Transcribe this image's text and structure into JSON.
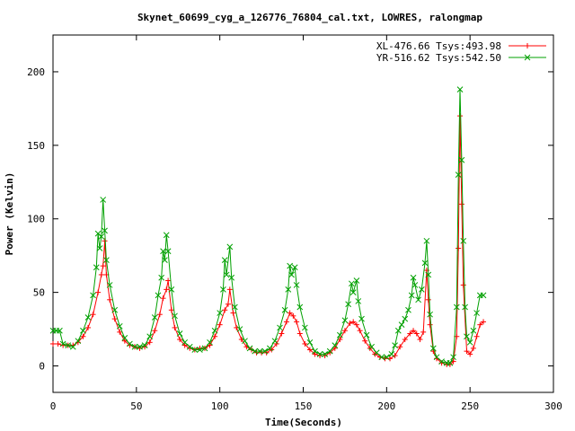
{
  "chart_data": {
    "type": "line",
    "title": "Skynet_60699_cyg_a_126776_76804_cal.txt, LOWRES, ralongmap",
    "xlabel": "Time(Seconds)",
    "ylabel": "Power (Kelvin)",
    "xlim": [
      0,
      300
    ],
    "ylim": [
      -18,
      225
    ],
    "xticks": [
      0,
      50,
      100,
      150,
      200,
      250,
      300
    ],
    "yticks": [
      0,
      50,
      100,
      150,
      200
    ],
    "grid": false,
    "legend_position": "top-right",
    "series": [
      {
        "name": "XL-476.66 Tsys:493.98",
        "color": "#ff0000",
        "marker": "plus",
        "points": [
          [
            0,
            15
          ],
          [
            3,
            15
          ],
          [
            6,
            14
          ],
          [
            9,
            14
          ],
          [
            12,
            14
          ],
          [
            15,
            16
          ],
          [
            18,
            20
          ],
          [
            21,
            26
          ],
          [
            24,
            35
          ],
          [
            27,
            50
          ],
          [
            29,
            62
          ],
          [
            30,
            68
          ],
          [
            31,
            85
          ],
          [
            32,
            62
          ],
          [
            34,
            45
          ],
          [
            37,
            32
          ],
          [
            40,
            23
          ],
          [
            43,
            17
          ],
          [
            46,
            14
          ],
          [
            49,
            13
          ],
          [
            52,
            12
          ],
          [
            55,
            13
          ],
          [
            58,
            16
          ],
          [
            61,
            24
          ],
          [
            64,
            35
          ],
          [
            66,
            46
          ],
          [
            68,
            52
          ],
          [
            69,
            58
          ],
          [
            71,
            38
          ],
          [
            73,
            26
          ],
          [
            76,
            18
          ],
          [
            79,
            14
          ],
          [
            82,
            12
          ],
          [
            85,
            11
          ],
          [
            88,
            12
          ],
          [
            91,
            12
          ],
          [
            94,
            14
          ],
          [
            97,
            20
          ],
          [
            100,
            28
          ],
          [
            103,
            38
          ],
          [
            105,
            42
          ],
          [
            106,
            52
          ],
          [
            108,
            36
          ],
          [
            110,
            26
          ],
          [
            113,
            18
          ],
          [
            116,
            13
          ],
          [
            119,
            11
          ],
          [
            122,
            9
          ],
          [
            125,
            9
          ],
          [
            128,
            9
          ],
          [
            131,
            11
          ],
          [
            134,
            15
          ],
          [
            137,
            22
          ],
          [
            140,
            30
          ],
          [
            142,
            36
          ],
          [
            144,
            34
          ],
          [
            146,
            30
          ],
          [
            148,
            22
          ],
          [
            151,
            15
          ],
          [
            154,
            11
          ],
          [
            157,
            8
          ],
          [
            160,
            7
          ],
          [
            163,
            7
          ],
          [
            166,
            9
          ],
          [
            169,
            12
          ],
          [
            172,
            18
          ],
          [
            175,
            24
          ],
          [
            178,
            29
          ],
          [
            180,
            30
          ],
          [
            182,
            28
          ],
          [
            184,
            24
          ],
          [
            187,
            17
          ],
          [
            190,
            12
          ],
          [
            193,
            8
          ],
          [
            196,
            6
          ],
          [
            199,
            5
          ],
          [
            202,
            5
          ],
          [
            205,
            7
          ],
          [
            208,
            13
          ],
          [
            211,
            18
          ],
          [
            214,
            22
          ],
          [
            216,
            24
          ],
          [
            218,
            22
          ],
          [
            220,
            18
          ],
          [
            222,
            23
          ],
          [
            224,
            65
          ],
          [
            225,
            45
          ],
          [
            226,
            28
          ],
          [
            228,
            10
          ],
          [
            230,
            5
          ],
          [
            233,
            2
          ],
          [
            236,
            1
          ],
          [
            238,
            1
          ],
          [
            240,
            3
          ],
          [
            242,
            20
          ],
          [
            243,
            80
          ],
          [
            244,
            170
          ],
          [
            245,
            110
          ],
          [
            246,
            55
          ],
          [
            248,
            10
          ],
          [
            250,
            8
          ],
          [
            252,
            12
          ],
          [
            254,
            20
          ],
          [
            256,
            28
          ],
          [
            258,
            30
          ]
        ]
      },
      {
        "name": "YR-516.62 Tsys:542.50",
        "color": "#00a000",
        "marker": "x",
        "points": [
          [
            0,
            24
          ],
          [
            2,
            24
          ],
          [
            4,
            24
          ],
          [
            6,
            15
          ],
          [
            9,
            14
          ],
          [
            12,
            13
          ],
          [
            15,
            17
          ],
          [
            18,
            24
          ],
          [
            21,
            33
          ],
          [
            24,
            48
          ],
          [
            26,
            67
          ],
          [
            27,
            90
          ],
          [
            28,
            80
          ],
          [
            29,
            88
          ],
          [
            30,
            113
          ],
          [
            31,
            92
          ],
          [
            32,
            72
          ],
          [
            34,
            55
          ],
          [
            37,
            38
          ],
          [
            40,
            27
          ],
          [
            43,
            19
          ],
          [
            46,
            15
          ],
          [
            49,
            13
          ],
          [
            52,
            13
          ],
          [
            55,
            14
          ],
          [
            58,
            20
          ],
          [
            61,
            33
          ],
          [
            63,
            48
          ],
          [
            65,
            60
          ],
          [
            66,
            78
          ],
          [
            67,
            72
          ],
          [
            68,
            89
          ],
          [
            69,
            78
          ],
          [
            71,
            52
          ],
          [
            73,
            34
          ],
          [
            76,
            22
          ],
          [
            79,
            16
          ],
          [
            82,
            13
          ],
          [
            85,
            11
          ],
          [
            88,
            11
          ],
          [
            91,
            12
          ],
          [
            94,
            16
          ],
          [
            97,
            24
          ],
          [
            100,
            36
          ],
          [
            102,
            52
          ],
          [
            103,
            72
          ],
          [
            104,
            62
          ],
          [
            106,
            81
          ],
          [
            107,
            60
          ],
          [
            109,
            40
          ],
          [
            112,
            25
          ],
          [
            115,
            17
          ],
          [
            118,
            12
          ],
          [
            121,
            10
          ],
          [
            124,
            10
          ],
          [
            127,
            10
          ],
          [
            130,
            12
          ],
          [
            133,
            17
          ],
          [
            136,
            26
          ],
          [
            139,
            38
          ],
          [
            141,
            52
          ],
          [
            142,
            68
          ],
          [
            143,
            62
          ],
          [
            145,
            67
          ],
          [
            146,
            55
          ],
          [
            148,
            40
          ],
          [
            151,
            26
          ],
          [
            154,
            16
          ],
          [
            157,
            10
          ],
          [
            160,
            8
          ],
          [
            163,
            8
          ],
          [
            166,
            10
          ],
          [
            169,
            14
          ],
          [
            172,
            21
          ],
          [
            175,
            31
          ],
          [
            177,
            42
          ],
          [
            179,
            56
          ],
          [
            180,
            50
          ],
          [
            182,
            58
          ],
          [
            183,
            44
          ],
          [
            185,
            32
          ],
          [
            188,
            21
          ],
          [
            191,
            13
          ],
          [
            194,
            9
          ],
          [
            197,
            6
          ],
          [
            200,
            6
          ],
          [
            203,
            8
          ],
          [
            205,
            14
          ],
          [
            207,
            24
          ],
          [
            209,
            28
          ],
          [
            211,
            32
          ],
          [
            213,
            38
          ],
          [
            215,
            48
          ],
          [
            216,
            60
          ],
          [
            217,
            55
          ],
          [
            219,
            45
          ],
          [
            221,
            52
          ],
          [
            223,
            70
          ],
          [
            224,
            85
          ],
          [
            225,
            62
          ],
          [
            226,
            35
          ],
          [
            228,
            12
          ],
          [
            230,
            6
          ],
          [
            233,
            3
          ],
          [
            236,
            2
          ],
          [
            238,
            2
          ],
          [
            240,
            6
          ],
          [
            242,
            40
          ],
          [
            243,
            130
          ],
          [
            244,
            188
          ],
          [
            245,
            140
          ],
          [
            246,
            85
          ],
          [
            247,
            40
          ],
          [
            248,
            20
          ],
          [
            250,
            16
          ],
          [
            252,
            24
          ],
          [
            254,
            36
          ],
          [
            256,
            48
          ],
          [
            258,
            48
          ]
        ]
      }
    ]
  }
}
